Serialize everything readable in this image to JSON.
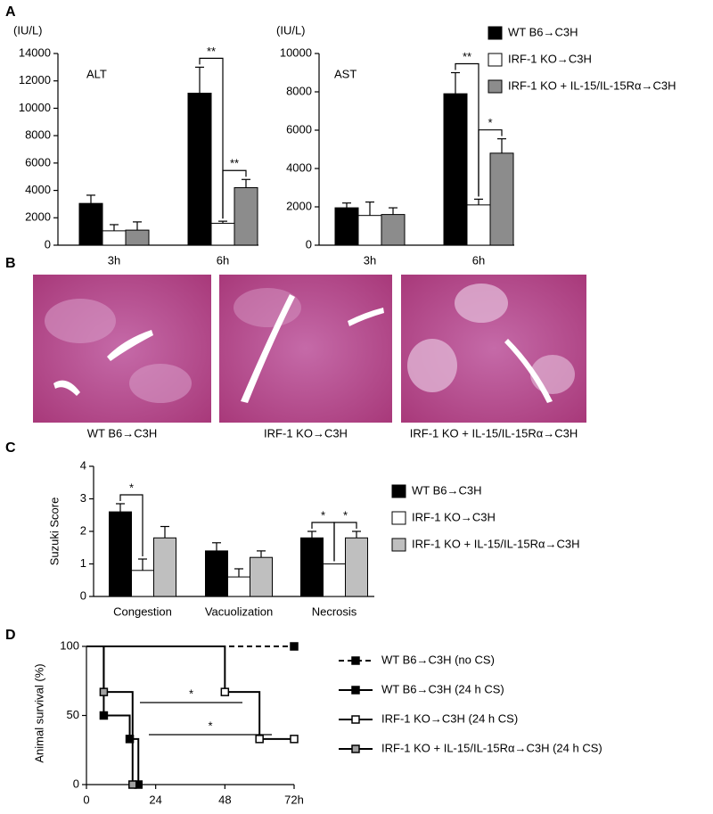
{
  "panel_labels": [
    "A",
    "B",
    "C",
    "D"
  ],
  "images": [
    {
      "caption": "WT B6→C3H"
    },
    {
      "caption": "IRF-1 KO→C3H"
    },
    {
      "caption": "IRF-1 KO + IL-15/IL-15Rα→C3H"
    }
  ],
  "chart_data": [
    {
      "type": "bar",
      "y_unit": "(IU/L)",
      "annotation": "ALT",
      "categories": [
        "3h",
        "6h"
      ],
      "series": [
        {
          "color": "#000000",
          "values": [
            3050,
            11100
          ],
          "errors": [
            600,
            1900
          ]
        },
        {
          "color": "#ffffff",
          "values": [
            1050,
            1600
          ],
          "errors": [
            450,
            150
          ]
        },
        {
          "color": "#8c8c8c",
          "values": [
            1100,
            4200
          ],
          "errors": [
            600,
            600
          ]
        }
      ],
      "ylim": [
        0,
        14000
      ],
      "yticks": [
        0,
        2000,
        4000,
        6000,
        8000,
        10000,
        12000,
        14000
      ],
      "significance": [
        {
          "category": 1,
          "series": [
            0,
            1
          ],
          "label": "**"
        },
        {
          "category": 1,
          "series": [
            1,
            2
          ],
          "label": "**"
        }
      ]
    },
    {
      "type": "bar",
      "y_unit": "(IU/L)",
      "annotation": "AST",
      "categories": [
        "3h",
        "6h"
      ],
      "legend": "top-right",
      "series": [
        {
          "name": "WT B6→C3H",
          "color": "#000000",
          "values": [
            1950,
            7900
          ],
          "errors": [
            250,
            1100
          ]
        },
        {
          "name": "IRF-1 KO→C3H",
          "color": "#ffffff",
          "values": [
            1550,
            2100
          ],
          "errors": [
            700,
            300
          ]
        },
        {
          "name": "IRF-1 KO + IL-15/IL-15Rα→C3H",
          "color": "#8c8c8c",
          "values": [
            1600,
            4800
          ],
          "errors": [
            350,
            750
          ]
        }
      ],
      "ylim": [
        0,
        10000
      ],
      "yticks": [
        0,
        2000,
        4000,
        6000,
        8000,
        10000
      ],
      "significance": [
        {
          "category": 1,
          "series": [
            0,
            1
          ],
          "label": "**"
        },
        {
          "category": 1,
          "series": [
            1,
            2
          ],
          "label": "*"
        }
      ]
    },
    {
      "type": "bar",
      "ylabel": "Suzuki Score",
      "categories": [
        "Congestion",
        "Vacuolization",
        "Necrosis"
      ],
      "legend": "right",
      "series": [
        {
          "name": "WT B6→C3H",
          "color": "#000000",
          "values": [
            2.6,
            1.4,
            1.8
          ],
          "errors": [
            0.25,
            0.25,
            0.2
          ]
        },
        {
          "name": "IRF-1 KO→C3H",
          "color": "#ffffff",
          "values": [
            0.8,
            0.6,
            1.0
          ],
          "errors": [
            0.35,
            0.25,
            0
          ]
        },
        {
          "name": "IRF-1 KO + IL-15/IL-15Rα→C3H",
          "color": "#bfbfbf",
          "values": [
            1.8,
            1.2,
            1.8
          ],
          "errors": [
            0.35,
            0.2,
            0.2
          ]
        }
      ],
      "ylim": [
        0,
        4
      ],
      "yticks": [
        0,
        1,
        2,
        3,
        4
      ],
      "significance": [
        {
          "category": 0,
          "series": [
            0,
            1
          ],
          "label": "*"
        },
        {
          "category": 2,
          "series": [
            0,
            1
          ],
          "label": "*"
        },
        {
          "category": 2,
          "series": [
            1,
            2
          ],
          "label": "*"
        }
      ]
    },
    {
      "type": "step",
      "ylabel": "Animal survival (%)",
      "legend": "right",
      "xlim": [
        0,
        72
      ],
      "xticks": [
        0,
        24,
        48,
        {
          "value": 72,
          "label": "72h"
        }
      ],
      "ylim": [
        0,
        100
      ],
      "yticks": [
        0,
        50,
        100
      ],
      "series": [
        {
          "name": "WT B6→C3H (no CS)",
          "color": "#000000",
          "marker_fill": "#000000",
          "dashed": true,
          "x": [
            0,
            72
          ],
          "values": [
            100,
            100
          ]
        },
        {
          "name": "WT B6→C3H (24 h CS)",
          "color": "#000000",
          "marker_fill": "#000000",
          "x": [
            0,
            6,
            15,
            18
          ],
          "values": [
            100,
            50,
            33,
            0
          ]
        },
        {
          "name": "IRF-1 KO→C3H (24 h CS)",
          "color": "#000000",
          "marker_fill": "#ffffff",
          "x": [
            0,
            48,
            60,
            72
          ],
          "values": [
            100,
            67,
            33,
            33
          ]
        },
        {
          "name": "IRF-1 KO + IL-15/IL-15Rα→C3H (24 h CS)",
          "color": "#000000",
          "marker_fill": "#a0a0a0",
          "x": [
            0,
            6,
            16
          ],
          "values": [
            100,
            67,
            0
          ]
        }
      ],
      "significance": [
        {
          "label": "*"
        },
        {
          "label": "*"
        }
      ]
    }
  ]
}
